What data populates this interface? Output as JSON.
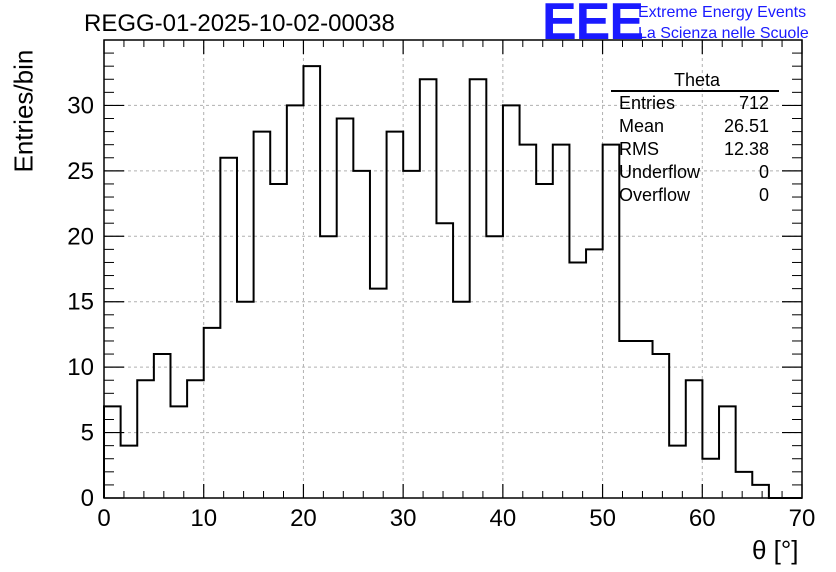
{
  "header": {
    "title": "REGG-01-2025-10-02-00038",
    "logo_text": "EEE",
    "logo_line1": "Extreme Energy Events",
    "logo_line2": "La Scienza nelle Scuole"
  },
  "stats": {
    "title": "Theta",
    "rows": [
      {
        "label": "Entries",
        "value": "712"
      },
      {
        "label": "Mean",
        "value": "26.51"
      },
      {
        "label": "RMS",
        "value": "12.38"
      },
      {
        "label": "Underflow",
        "value": "0"
      },
      {
        "label": "Overflow",
        "value": "0"
      }
    ]
  },
  "colors": {
    "logo": "#1a1aff",
    "line": "#000000",
    "grid": "#b0b0b0"
  },
  "chart_data": {
    "type": "bar",
    "title": "REGG-01-2025-10-02-00038",
    "xlabel": "θ [°]",
    "ylabel": "Entries/bin",
    "xlim": [
      0,
      70
    ],
    "ylim": [
      0,
      35
    ],
    "bin_width": 1.667,
    "bin_edges_start": 0,
    "values": [
      7,
      4,
      9,
      11,
      7,
      9,
      13,
      26,
      15,
      28,
      24,
      30,
      33,
      20,
      29,
      25,
      16,
      28,
      25,
      32,
      21,
      15,
      32,
      20,
      30,
      27,
      24,
      27,
      18,
      19,
      27,
      12,
      12,
      11,
      4,
      9,
      3,
      7,
      2,
      1,
      0,
      0
    ],
    "xticks": [
      0,
      10,
      20,
      30,
      40,
      50,
      60,
      70
    ],
    "xtick_labels": [
      "0",
      "10",
      "20",
      "30",
      "40",
      "50",
      "60",
      "70"
    ],
    "yticks": [
      0,
      5,
      10,
      15,
      20,
      25,
      30
    ],
    "ytick_labels": [
      "0",
      "5",
      "10",
      "15",
      "20",
      "25",
      "30"
    ],
    "grid": true
  }
}
